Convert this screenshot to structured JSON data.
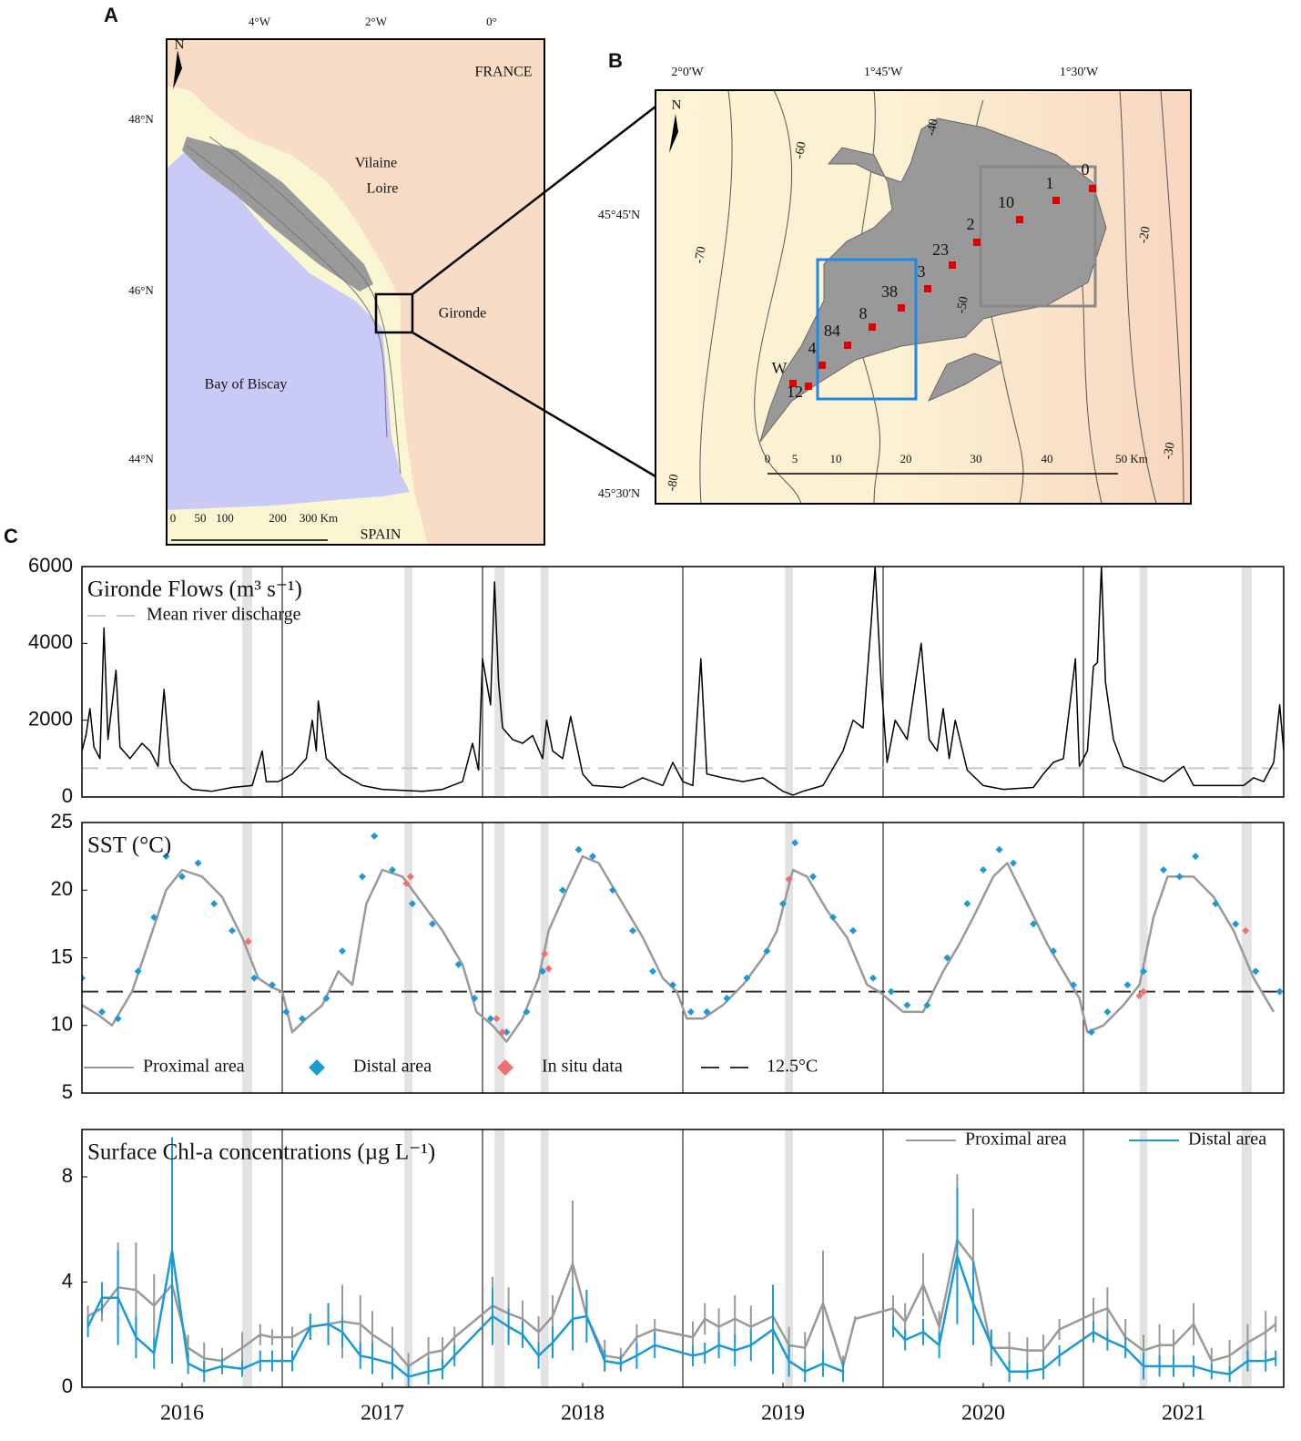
{
  "figure": {
    "panel_labels": [
      "A",
      "B",
      "C"
    ],
    "map_a": {
      "lon_labels": [
        "4°W",
        "2°W",
        "0°"
      ],
      "lat_labels": [
        "48°N",
        "46°N",
        "44°N"
      ],
      "north": "N",
      "places": [
        "FRANCE",
        "Vilaine",
        "Loire",
        "Gironde",
        "Bay of Biscay",
        "SPAIN"
      ],
      "scale": [
        "0",
        "50",
        "100",
        "200",
        "300 Km"
      ]
    },
    "map_b": {
      "lon_labels": [
        "2°0'W",
        "1°45'W",
        "1°30'W"
      ],
      "lat_labels": [
        "45°45'N",
        "45°30'N"
      ],
      "north": "N",
      "stations": [
        "0",
        "1",
        "10",
        "2",
        "23",
        "3",
        "38",
        "8",
        "84",
        "4",
        "W",
        "12"
      ],
      "depths": [
        "-70",
        "-60",
        "-40",
        "-50",
        "-20",
        "-30",
        "-80"
      ],
      "scale": [
        "0",
        "5",
        "10",
        "20",
        "30",
        "40",
        "50 Km"
      ]
    }
  },
  "chart_data": [
    {
      "type": "line",
      "title": "Gironde Flows (m³ s⁻¹)",
      "color": "#000000",
      "xlim": [
        2016,
        2022
      ],
      "ylim": [
        0,
        6000
      ],
      "yticks": [
        0,
        2000,
        4000,
        6000
      ],
      "reference_line": {
        "name": "Mean river discharge",
        "value": 750,
        "color": "#c8c8c8"
      },
      "highlights": [
        [
          2016.8,
          2016.85
        ],
        [
          2017.61,
          2017.65
        ],
        [
          2018.06,
          2018.11
        ],
        [
          2018.29,
          2018.33
        ],
        [
          2019.51,
          2019.55
        ],
        [
          2021.28,
          2021.32
        ],
        [
          2021.79,
          2021.84
        ]
      ],
      "x": [
        2016.0,
        2016.02,
        2016.04,
        2016.06,
        2016.09,
        2016.11,
        2016.13,
        2016.17,
        2016.19,
        2016.24,
        2016.3,
        2016.34,
        2016.38,
        2016.41,
        2016.44,
        2016.5,
        2016.55,
        2016.65,
        2016.75,
        2016.85,
        2016.9,
        2016.92,
        2016.98,
        2017.05,
        2017.12,
        2017.15,
        2017.17,
        2017.18,
        2017.22,
        2017.3,
        2017.4,
        2017.5,
        2017.7,
        2017.8,
        2017.9,
        2017.95,
        2017.98,
        2018.0,
        2018.04,
        2018.06,
        2018.08,
        2018.1,
        2018.15,
        2018.2,
        2018.25,
        2018.3,
        2018.32,
        2018.35,
        2018.4,
        2018.44,
        2018.5,
        2018.55,
        2018.7,
        2018.8,
        2018.9,
        2018.95,
        2019.0,
        2019.05,
        2019.09,
        2019.12,
        2019.2,
        2019.3,
        2019.4,
        2019.5,
        2019.55,
        2019.6,
        2019.7,
        2019.8,
        2019.85,
        2019.9,
        2019.94,
        2019.96,
        2019.99,
        2020.02,
        2020.06,
        2020.12,
        2020.19,
        2020.23,
        2020.27,
        2020.3,
        2020.33,
        2020.36,
        2020.42,
        2020.5,
        2020.6,
        2020.75,
        2020.8,
        2020.85,
        2020.9,
        2020.96,
        2020.98,
        2021.02,
        2021.05,
        2021.07,
        2021.09,
        2021.11,
        2021.15,
        2021.2,
        2021.3,
        2021.4,
        2021.5,
        2021.55,
        2021.7,
        2021.8,
        2021.85,
        2021.9,
        2021.95,
        2021.98,
        2022.0
      ],
      "values": [
        1200,
        1600,
        2300,
        1300,
        1000,
        4400,
        1500,
        3300,
        1300,
        1000,
        1400,
        1200,
        800,
        2800,
        900,
        400,
        200,
        150,
        250,
        300,
        1200,
        400,
        400,
        600,
        1000,
        2000,
        1200,
        2500,
        1000,
        600,
        300,
        200,
        150,
        200,
        400,
        1400,
        700,
        3600,
        2400,
        5600,
        3000,
        1800,
        1500,
        1400,
        1600,
        1000,
        2000,
        1200,
        1000,
        2100,
        600,
        300,
        250,
        500,
        300,
        900,
        400,
        300,
        3600,
        600,
        500,
        400,
        500,
        150,
        50,
        150,
        300,
        1200,
        2000,
        1800,
        4500,
        6000,
        3000,
        900,
        2000,
        1500,
        4000,
        1500,
        1200,
        2300,
        1000,
        2000,
        700,
        300,
        200,
        250,
        600,
        900,
        1000,
        3600,
        800,
        1200,
        3400,
        3500,
        6000,
        3000,
        1500,
        800,
        600,
        400,
        800,
        300,
        300,
        300,
        500,
        400,
        900,
        2400,
        1200
      ]
    },
    {
      "type": "line",
      "title": "SST (°C)",
      "xlim": [
        2016,
        2022
      ],
      "ylim": [
        5,
        25
      ],
      "yticks": [
        5,
        10,
        15,
        20,
        25
      ],
      "reference_line": {
        "name": "12.5°C",
        "value": 12.5,
        "color": "#333333"
      },
      "series": [
        {
          "name": "Proximal area",
          "color": "#999999",
          "x": [
            2016.0,
            2016.08,
            2016.15,
            2016.25,
            2016.33,
            2016.42,
            2016.5,
            2016.6,
            2016.7,
            2016.8,
            2016.88,
            2016.95,
            2017.0,
            2017.05,
            2017.12,
            2017.2,
            2017.28,
            2017.35,
            2017.42,
            2017.5,
            2017.6,
            2017.7,
            2017.8,
            2017.9,
            2017.97,
            2018.05,
            2018.12,
            2018.2,
            2018.28,
            2018.33,
            2018.42,
            2018.5,
            2018.58,
            2018.7,
            2018.8,
            2018.9,
            2018.97,
            2019.02,
            2019.1,
            2019.2,
            2019.3,
            2019.4,
            2019.47,
            2019.55,
            2019.62,
            2019.72,
            2019.82,
            2019.92,
            2019.98,
            2020.02,
            2020.1,
            2020.2,
            2020.3,
            2020.38,
            2020.45,
            2020.55,
            2020.62,
            2020.72,
            2020.82,
            2020.92,
            2020.98,
            2021.02,
            2021.1,
            2021.2,
            2021.28,
            2021.35,
            2021.42,
            2021.55,
            2021.65,
            2021.75,
            2021.85,
            2021.95
          ],
          "values": [
            11.5,
            10.8,
            10.0,
            12.5,
            16,
            20,
            21.5,
            21,
            19.5,
            16.5,
            13.5,
            12.8,
            12.5,
            9.5,
            10.5,
            11.5,
            14,
            13,
            19,
            21.5,
            21,
            19,
            17,
            14.5,
            11,
            10,
            8.8,
            10.5,
            13.5,
            17,
            20,
            22.5,
            22,
            19,
            16.5,
            13.5,
            12.5,
            10.5,
            10.5,
            11.5,
            13,
            15,
            17,
            21.5,
            21,
            18.5,
            16.5,
            13,
            12.5,
            12,
            11,
            11,
            14,
            16,
            18,
            21,
            22,
            19,
            16,
            13.5,
            12,
            9.5,
            10,
            11.5,
            13,
            18,
            21,
            21,
            19.5,
            17,
            13.5,
            11
          ]
        },
        {
          "name": "Distal area",
          "color": "#1a9ad6",
          "marker": "diamond",
          "x": [
            2016.0,
            2016.1,
            2016.18,
            2016.28,
            2016.36,
            2016.42,
            2016.5,
            2016.58,
            2016.66,
            2016.75,
            2016.86,
            2016.95,
            2017.02,
            2017.1,
            2017.22,
            2017.3,
            2017.4,
            2017.46,
            2017.55,
            2017.65,
            2017.75,
            2017.88,
            2017.96,
            2018.04,
            2018.12,
            2018.22,
            2018.3,
            2018.4,
            2018.48,
            2018.55,
            2018.65,
            2018.75,
            2018.85,
            2018.95,
            2019.04,
            2019.12,
            2019.22,
            2019.32,
            2019.42,
            2019.5,
            2019.56,
            2019.65,
            2019.75,
            2019.85,
            2019.95,
            2020.04,
            2020.12,
            2020.22,
            2020.32,
            2020.42,
            2020.5,
            2020.58,
            2020.65,
            2020.75,
            2020.85,
            2020.95,
            2021.04,
            2021.12,
            2021.22,
            2021.3,
            2021.4,
            2021.48,
            2021.56,
            2021.66,
            2021.76,
            2021.86,
            2021.98
          ],
          "values": [
            13.5,
            11,
            10.5,
            14,
            18,
            22.5,
            21,
            22,
            19,
            17,
            13.5,
            13,
            11,
            10.5,
            12,
            15.5,
            21,
            24,
            21.5,
            19,
            17.5,
            14.5,
            12,
            10.5,
            9.5,
            11,
            14,
            20,
            23,
            22.5,
            20,
            17,
            14,
            13,
            11,
            11,
            12,
            13.5,
            15.5,
            19,
            23.5,
            21,
            18,
            17,
            13.5,
            12.5,
            11.5,
            11.5,
            15,
            19,
            21.5,
            23,
            22,
            17.5,
            15.5,
            13,
            9.5,
            11,
            13,
            14,
            21.5,
            21,
            22.5,
            19,
            17.5,
            14,
            12.5
          ]
        },
        {
          "name": "In situ data",
          "color": "#f07070",
          "marker": "diamond",
          "x": [
            2016.83,
            2017.62,
            2017.64,
            2018.07,
            2018.1,
            2018.31,
            2018.33,
            2019.53,
            2021.28,
            2021.3,
            2021.81
          ],
          "values": [
            16.2,
            20.5,
            21,
            10.5,
            9.5,
            15.3,
            14.2,
            20.8,
            12.2,
            12.5,
            17
          ]
        }
      ]
    },
    {
      "type": "line",
      "title": "Surface Chl-a concentrations (µg L⁻¹)",
      "xlim": [
        2016,
        2022
      ],
      "ylim": [
        0,
        9.8
      ],
      "yticks": [
        0,
        4,
        8
      ],
      "xticks": [
        {
          "value": 2016.5,
          "label": "2016"
        },
        {
          "value": 2017.5,
          "label": "2017"
        },
        {
          "value": 2018.5,
          "label": "2018"
        },
        {
          "value": 2019.5,
          "label": "2019"
        },
        {
          "value": 2020.5,
          "label": "2020"
        },
        {
          "value": 2021.5,
          "label": "2021"
        }
      ],
      "x": [
        2016.03,
        2016.1,
        2016.18,
        2016.27,
        2016.36,
        2016.45,
        2016.53,
        2016.61,
        2016.7,
        2016.8,
        2016.89,
        2016.95,
        2017.05,
        2017.14,
        2017.23,
        2017.3,
        2017.39,
        2017.45,
        2017.55,
        2017.63,
        2017.73,
        2017.8,
        2017.86,
        2018.05,
        2018.13,
        2018.2,
        2018.28,
        2018.35,
        2018.45,
        2018.52,
        2018.61,
        2018.69,
        2018.77,
        2018.86,
        2019.05,
        2019.11,
        2019.18,
        2019.26,
        2019.34,
        2019.45,
        2019.53,
        2019.61,
        2019.7,
        2019.8,
        2019.86,
        2020.05,
        2020.11,
        2020.2,
        2020.28,
        2020.37,
        2020.45,
        2020.54,
        2020.63,
        2020.72,
        2020.8,
        2020.88,
        2021.05,
        2021.12,
        2021.21,
        2021.3,
        2021.38,
        2021.45,
        2021.55,
        2021.64,
        2021.73,
        2021.82,
        2021.91,
        2021.96
      ],
      "series": [
        {
          "name": "Proximal area",
          "color": "#999999",
          "values": [
            2.7,
            3.0,
            3.8,
            3.7,
            3.1,
            3.9,
            1.5,
            1.1,
            1.0,
            1.5,
            2.0,
            1.9,
            1.9,
            2.3,
            2.4,
            2.5,
            2.4,
            2.0,
            1.5,
            0.8,
            1.3,
            1.4,
            1.9,
            3.1,
            2.8,
            2.6,
            2.1,
            2.7,
            4.7,
            2.7,
            1.2,
            1.1,
            1.9,
            2.2,
            1.9,
            2.6,
            2.3,
            2.6,
            2.3,
            2.7,
            1.6,
            1.5,
            3.2,
            0.8,
            2.6,
            3.0,
            2.5,
            3.9,
            2.3,
            5.6,
            4.8,
            1.5,
            1.5,
            1.4,
            1.4,
            2.2,
            2.8,
            3.0,
            1.9,
            1.4,
            1.6,
            1.6,
            2.4,
            1.0,
            1.2,
            1.7,
            2.1,
            2.4
          ],
          "errors": [
            0.4,
            0.5,
            1.7,
            1.8,
            1.2,
            0.9,
            0.5,
            0.6,
            0.5,
            0.6,
            0.4,
            0.3,
            0.4,
            0.5,
            0.8,
            1.4,
            1.1,
            0.9,
            0.8,
            0.5,
            0.6,
            0.5,
            0.4,
            1.1,
            1.0,
            0.7,
            0.6,
            0.8,
            2.4,
            1.0,
            0.6,
            0.4,
            0.5,
            0.4,
            0.6,
            0.6,
            0.7,
            0.9,
            0.8,
            0.9,
            0.7,
            0.6,
            2.0,
            0.4,
            0.1,
            0.5,
            0.7,
            1.2,
            0.6,
            2.5,
            2.0,
            0.7,
            0.6,
            0.5,
            0.6,
            0.4,
            0.6,
            0.8,
            0.7,
            0.6,
            0.8,
            0.6,
            0.8,
            0.5,
            0.6,
            0.7,
            0.8,
            0.3
          ]
        },
        {
          "name": "Distal area",
          "color": "#1a9ad6",
          "values": [
            2.3,
            3.4,
            3.4,
            1.9,
            1.3,
            5.2,
            0.9,
            0.6,
            0.8,
            0.7,
            1.0,
            1.0,
            1.0,
            2.3,
            2.4,
            2.1,
            1.2,
            1.1,
            0.9,
            0.4,
            0.6,
            0.7,
            1.2,
            2.7,
            2.3,
            2.0,
            1.2,
            1.7,
            2.6,
            2.7,
            1.0,
            0.9,
            1.2,
            1.6,
            1.2,
            1.3,
            1.6,
            1.4,
            1.6,
            2.2,
            1.0,
            0.6,
            0.9,
            0.6,
            null,
            2.3,
            1.8,
            2.1,
            1.6,
            5.0,
            3.2,
            1.6,
            0.6,
            0.6,
            0.7,
            1.2,
            2.1,
            1.8,
            1.5,
            0.8,
            0.8,
            0.8,
            0.8,
            0.6,
            0.5,
            1.0,
            1.0,
            1.1
          ],
          "errors": [
            0.4,
            0.6,
            1.8,
            0.8,
            0.6,
            4.3,
            0.4,
            0.4,
            0.3,
            0.3,
            0.4,
            0.4,
            0.4,
            0.5,
            0.8,
            0.6,
            0.5,
            0.6,
            0.6,
            0.4,
            0.5,
            0.4,
            0.4,
            1.1,
            0.7,
            0.5,
            0.5,
            0.6,
            1.2,
            1.0,
            0.4,
            0.3,
            0.5,
            0.5,
            0.4,
            0.4,
            0.5,
            0.6,
            0.6,
            1.7,
            0.6,
            0.4,
            0.5,
            0.4,
            null,
            0.4,
            0.4,
            0.5,
            0.5,
            2.6,
            1.6,
            0.6,
            0.4,
            0.3,
            0.4,
            0.4,
            0.4,
            0.4,
            0.4,
            0.5,
            0.4,
            0.4,
            0.4,
            0.3,
            0.3,
            0.4,
            0.4,
            0.3
          ]
        }
      ]
    }
  ]
}
